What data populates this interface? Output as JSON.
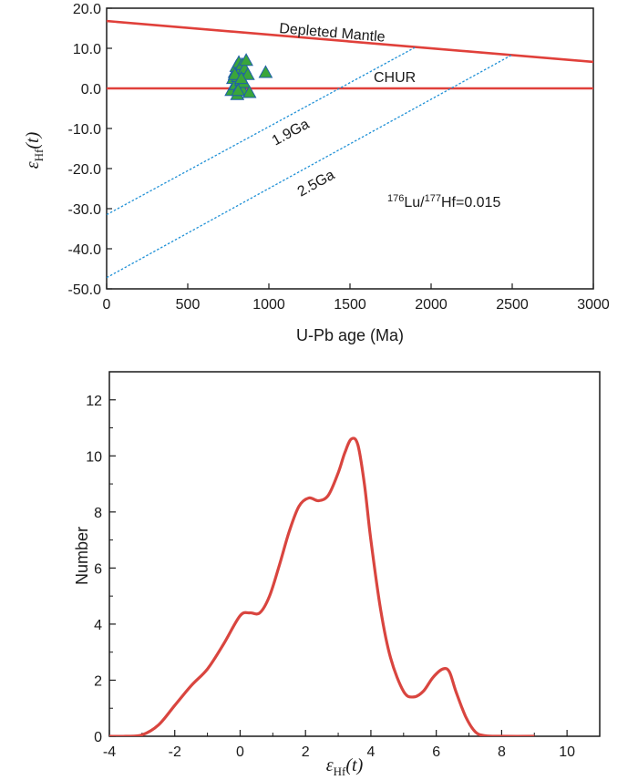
{
  "chart_data": [
    {
      "type": "scatter",
      "xlabel": "U-Pb age (Ma)",
      "ylabel": {
        "symbol": "ε",
        "sub": "Hf",
        "arg": "(t)"
      },
      "xlim": [
        0,
        3000
      ],
      "ylim": [
        -50,
        20
      ],
      "xticks": [
        "0",
        "500",
        "1000",
        "1500",
        "2000",
        "2500",
        "3000"
      ],
      "yticks": [
        "20.0",
        "10.0",
        "0.0",
        "-10.0",
        "-20.0",
        "-30.0",
        "-40.0",
        "-50.0"
      ],
      "reference_lines": [
        {
          "label": "Depleted Mantle",
          "x": [
            0,
            3000
          ],
          "y": [
            16.8,
            6.6
          ],
          "color": "#e0403a",
          "style": "solid"
        },
        {
          "label": "CHUR",
          "x": [
            0,
            3000
          ],
          "y": [
            0,
            0
          ],
          "color": "#e0403a",
          "style": "solid"
        },
        {
          "label": "1.9Ga",
          "x": [
            0,
            1900
          ],
          "y": [
            -31.5,
            10.2
          ],
          "color": "#1e90d6",
          "style": "dotted"
        },
        {
          "label": "2.5Ga",
          "x": [
            0,
            2500
          ],
          "y": [
            -47.2,
            8.4
          ],
          "color": "#1e90d6",
          "style": "dotted"
        }
      ],
      "points": {
        "x": [
          770,
          780,
          790,
          795,
          800,
          805,
          810,
          815,
          820,
          825,
          830,
          835,
          840,
          845,
          850,
          860,
          870,
          880,
          980,
          790,
          810,
          830
        ],
        "y": [
          -0.5,
          2.5,
          4.0,
          1.0,
          5.5,
          -1.5,
          3.0,
          6.5,
          0.5,
          4.5,
          2.0,
          6.0,
          -0.5,
          1.5,
          5.0,
          7.0,
          3.5,
          -1.0,
          4.0,
          3.5,
          -0.5,
          2.5
        ],
        "marker": "triangle",
        "color": "#3aa63a",
        "edgecolor": "#1f5fa8"
      },
      "annotation": {
        "base": "Lu",
        "base_sup": "176",
        "div": "/",
        "num": "Hf",
        "num_sup": "177",
        "value": "=0.015"
      }
    },
    {
      "type": "line",
      "xlabel": {
        "symbol": "ε",
        "sub": "Hf",
        "arg": "(t)"
      },
      "ylabel": "Number",
      "xlim": [
        -4,
        11
      ],
      "ylim": [
        0,
        13
      ],
      "xticks": [
        "-4",
        "-2",
        "0",
        "2",
        "4",
        "6",
        "8",
        "10"
      ],
      "yticks": [
        "0",
        "2",
        "4",
        "6",
        "8",
        "10",
        "12"
      ],
      "series": [
        {
          "color": "#d9453f",
          "x": [
            -4,
            -3.5,
            -3,
            -2.5,
            -2,
            -1.5,
            -1,
            -0.5,
            0,
            0.3,
            0.6,
            0.9,
            1.2,
            1.5,
            1.8,
            2.1,
            2.4,
            2.7,
            3.0,
            3.2,
            3.4,
            3.6,
            3.8,
            4.0,
            4.3,
            4.6,
            5.0,
            5.3,
            5.6,
            5.9,
            6.2,
            6.4,
            6.6,
            6.9,
            7.2,
            7.5,
            8.0,
            9.0
          ],
          "y": [
            0,
            0,
            0.05,
            0.4,
            1.1,
            1.8,
            2.4,
            3.3,
            4.3,
            4.4,
            4.4,
            5.0,
            6.1,
            7.3,
            8.2,
            8.5,
            8.4,
            8.6,
            9.4,
            10.1,
            10.6,
            10.4,
            9.0,
            7.0,
            4.5,
            2.8,
            1.6,
            1.4,
            1.6,
            2.1,
            2.4,
            2.3,
            1.6,
            0.7,
            0.15,
            0.02,
            0,
            0
          ]
        }
      ]
    }
  ]
}
